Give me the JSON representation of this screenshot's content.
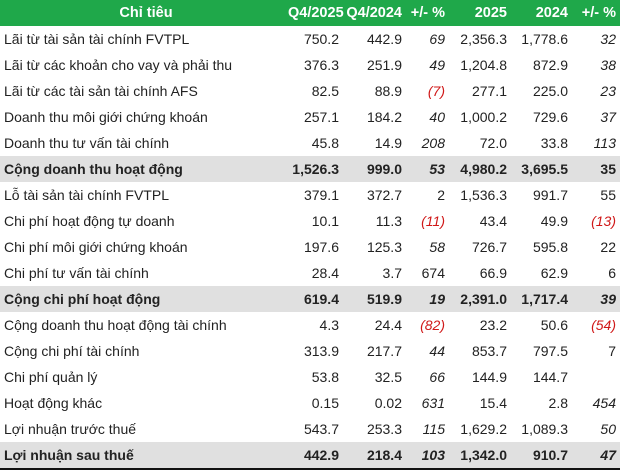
{
  "colors": {
    "header_bg": "#1fa84a",
    "total_bg": "#e0e0e0",
    "negative": "#d01818"
  },
  "table": {
    "headers": [
      "Chỉ tiêu",
      "Q4/2025",
      "Q4/2024",
      "+/- %",
      "2025",
      "2024",
      "+/- %"
    ],
    "rows": [
      {
        "label": "Lãi từ tài sản tài chính FVTPL",
        "values": [
          "750.2",
          "442.9",
          "69",
          "2,356.3",
          "1,778.6",
          "32"
        ],
        "italic_pct": [
          true,
          true
        ]
      },
      {
        "label": "Lãi từ các khoản cho vay và phải thu",
        "values": [
          "376.3",
          "251.9",
          "49",
          "1,204.8",
          "872.9",
          "38"
        ],
        "italic_pct": [
          true,
          true
        ]
      },
      {
        "label": "Lãi từ các tài sản tài chính AFS",
        "values": [
          "82.5",
          "88.9",
          "(7)",
          "277.1",
          "225.0",
          "23"
        ],
        "italic_pct": [
          true,
          true
        ]
      },
      {
        "label": "Doanh thu môi giới chứng khoán",
        "values": [
          "257.1",
          "184.2",
          "40",
          "1,000.2",
          "729.6",
          "37"
        ],
        "italic_pct": [
          true,
          true
        ]
      },
      {
        "label": "Doanh thu tư vấn tài chính",
        "values": [
          "45.8",
          "14.9",
          "208",
          "72.0",
          "33.8",
          "113"
        ],
        "italic_pct": [
          true,
          true
        ]
      },
      {
        "label": "Cộng doanh thu hoạt động",
        "values": [
          "1,526.3",
          "999.0",
          "53",
          "4,980.2",
          "3,695.5",
          "35"
        ],
        "italic_pct": [
          true,
          false
        ],
        "total": true
      },
      {
        "label": "Lỗ tài sản tài chính FVTPL",
        "values": [
          "379.1",
          "372.7",
          "2",
          "1,536.3",
          "991.7",
          "55"
        ],
        "italic_pct": [
          false,
          false
        ]
      },
      {
        "label": "Chi phí hoạt động tự doanh",
        "values": [
          "10.1",
          "11.3",
          "(11)",
          "43.4",
          "49.9",
          "(13)"
        ],
        "italic_pct": [
          true,
          true
        ]
      },
      {
        "label": "Chi phí môi giới chứng khoán",
        "values": [
          "197.6",
          "125.3",
          "58",
          "726.7",
          "595.8",
          "22"
        ],
        "italic_pct": [
          true,
          false
        ]
      },
      {
        "label": "Chi phí tư vấn tài chính",
        "values": [
          "28.4",
          "3.7",
          "674",
          "66.9",
          "62.9",
          "6"
        ],
        "italic_pct": [
          false,
          false
        ]
      },
      {
        "label": "Cộng chi phí hoạt động",
        "values": [
          "619.4",
          "519.9",
          "19",
          "2,391.0",
          "1,717.4",
          "39"
        ],
        "italic_pct": [
          true,
          true
        ],
        "total": true
      },
      {
        "label": "Cộng doanh thu hoạt động tài chính",
        "values": [
          "4.3",
          "24.4",
          "(82)",
          "23.2",
          "50.6",
          "(54)"
        ],
        "italic_pct": [
          true,
          true
        ]
      },
      {
        "label": "Cộng chi phí tài chính",
        "values": [
          "313.9",
          "217.7",
          "44",
          "853.7",
          "797.5",
          "7"
        ],
        "italic_pct": [
          true,
          false
        ]
      },
      {
        "label": "Chi phí quản lý",
        "values": [
          "53.8",
          "32.5",
          "66",
          "144.9",
          "144.7",
          ""
        ],
        "italic_pct": [
          true,
          false
        ]
      },
      {
        "label": "Hoạt động khác",
        "values": [
          "0.15",
          "0.02",
          "631",
          "15.4",
          "2.8",
          "454"
        ],
        "italic_pct": [
          true,
          true
        ]
      },
      {
        "label": "Lợi nhuận trước thuế",
        "values": [
          "543.7",
          "253.3",
          "115",
          "1,629.2",
          "1,089.3",
          "50"
        ],
        "italic_pct": [
          true,
          true
        ]
      },
      {
        "label": "Lợi nhuận sau thuế",
        "values": [
          "442.9",
          "218.4",
          "103",
          "1,342.0",
          "910.7",
          "47"
        ],
        "italic_pct": [
          true,
          true
        ],
        "total": true
      }
    ]
  }
}
